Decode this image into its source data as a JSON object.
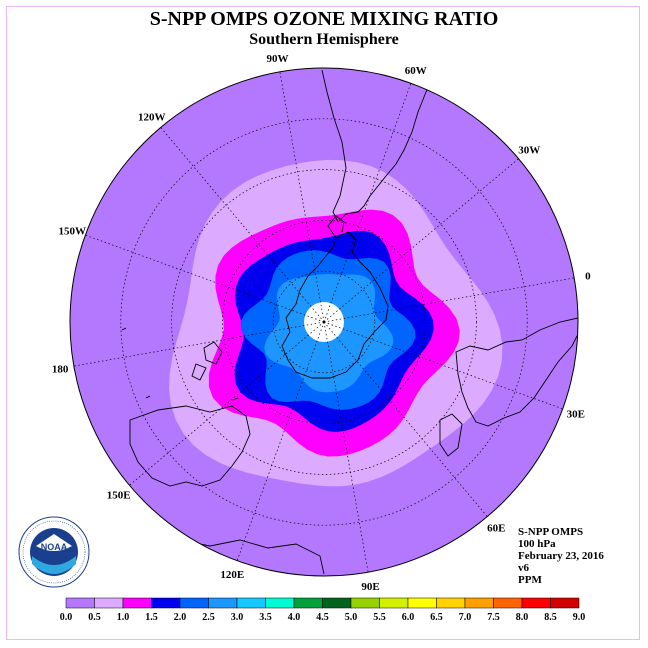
{
  "title": "S-NPP OMPS OZONE MIXING RATIO",
  "subtitle": "Southern Hemisphere",
  "longitude_labels": [
    "90W",
    "60W",
    "30W",
    "0",
    "30E",
    "60E",
    "90E",
    "120E",
    "150E",
    "180",
    "150W",
    "120W"
  ],
  "info": {
    "instrument": "S-NPP OMPS",
    "level": "100 hPa",
    "date": "February 23, 2016",
    "version": "v6",
    "units": "PPM"
  },
  "logo": {
    "text": "NOAA",
    "ring_text": "NATIONAL OCEANIC AND ATMOSPHERIC ADMINISTRATION · U.S. DEPARTMENT OF COMMERCE"
  },
  "colorbar": {
    "labels": [
      "0.0",
      "0.5",
      "1.0",
      "1.5",
      "2.0",
      "2.5",
      "3.0",
      "3.5",
      "4.0",
      "4.5",
      "5.0",
      "5.5",
      "6.0",
      "6.5",
      "7.0",
      "7.5",
      "8.0",
      "8.5",
      "9.0"
    ],
    "colors": [
      "#b478ff",
      "#dcaaff",
      "#ff00ff",
      "#0000ee",
      "#0064ff",
      "#1e96ff",
      "#14c8ff",
      "#00fad2",
      "#00a03c",
      "#00641e",
      "#96d200",
      "#d2f000",
      "#ffff00",
      "#ffd200",
      "#ffa000",
      "#ff6400",
      "#ff0000",
      "#d20000",
      "#825a41"
    ]
  },
  "map_fill": {
    "background": "#b478ff",
    "ozone_bands_ppm": [
      {
        "range": "0.5-1.0",
        "color": "#dcaaff"
      },
      {
        "range": "1.0-1.5",
        "color": "#ff00ff"
      },
      {
        "range": "1.5-2.0",
        "color": "#0000ee"
      },
      {
        "range": "2.0-2.5",
        "color": "#0064ff"
      },
      {
        "range": "2.5-3.0",
        "color": "#1e96ff"
      }
    ],
    "missing_center": "#ffffff"
  }
}
